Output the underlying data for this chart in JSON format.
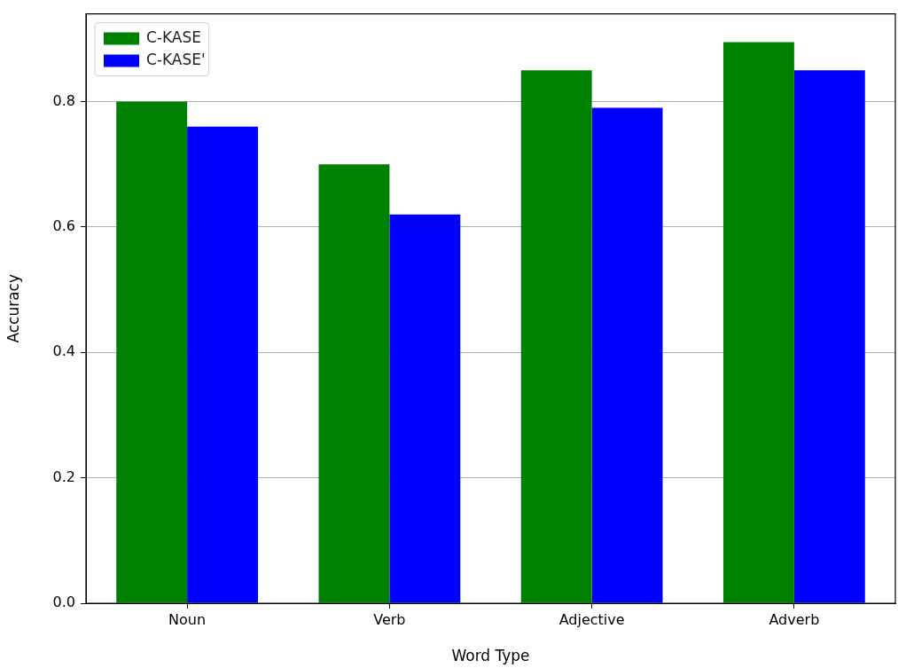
{
  "chart_data": {
    "type": "bar",
    "xlabel": "Word Type",
    "ylabel": "Accuracy",
    "categories": [
      "Noun",
      "Verb",
      "Adjective",
      "Adverb"
    ],
    "series": [
      {
        "name": "C-KASE",
        "color": "#008000",
        "values": [
          0.8,
          0.7,
          0.85,
          0.895
        ]
      },
      {
        "name": "C-KASE'",
        "color": "#0000ff",
        "values": [
          0.76,
          0.62,
          0.79,
          0.85
        ]
      }
    ],
    "ylim": [
      0,
      0.94
    ],
    "yticks": [
      {
        "value": 0,
        "label": "0.0"
      },
      {
        "value": 0.2,
        "label": "0.2"
      },
      {
        "value": 0.4,
        "label": "0.4"
      },
      {
        "value": 0.6,
        "label": "0.6"
      },
      {
        "value": 0.8,
        "label": "0.8"
      }
    ],
    "grid": "y",
    "legend": "top left"
  }
}
